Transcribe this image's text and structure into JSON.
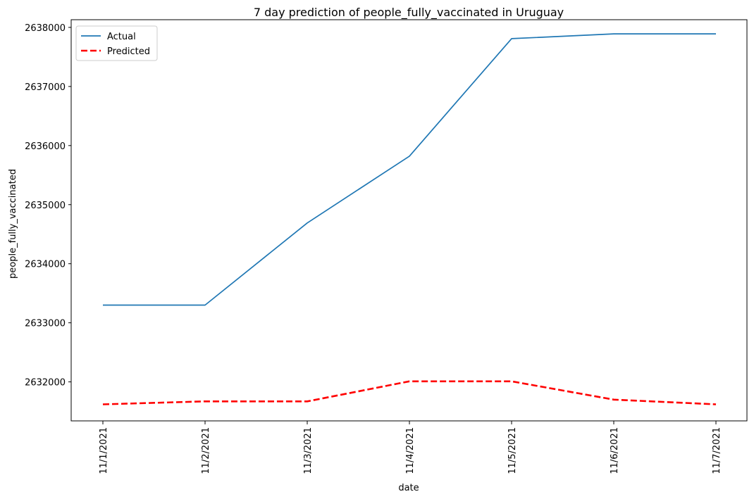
{
  "chart_data": {
    "type": "line",
    "title": "7 day prediction of people_fully_vaccinated in Uruguay",
    "xlabel": "date",
    "ylabel": "people_fully_vaccinated",
    "categories": [
      "11/1/2021",
      "11/2/2021",
      "11/3/2021",
      "11/4/2021",
      "11/5/2021",
      "11/6/2021",
      "11/7/2021"
    ],
    "yticks": [
      2632000,
      2633000,
      2634000,
      2635000,
      2636000,
      2637000,
      2638000
    ],
    "ylim": [
      2631340,
      2638130
    ],
    "grid": false,
    "legend_position": "top-left",
    "series": [
      {
        "name": "Actual",
        "color": "#1f77b4",
        "style": "solid",
        "values": [
          2633300,
          2633300,
          2634690,
          2635820,
          2637810,
          2637890,
          2637890
        ]
      },
      {
        "name": "Predicted",
        "color": "#ff0000",
        "style": "dashed",
        "values": [
          2631620,
          2631670,
          2631670,
          2632010,
          2632010,
          2631700,
          2631620
        ]
      }
    ]
  }
}
